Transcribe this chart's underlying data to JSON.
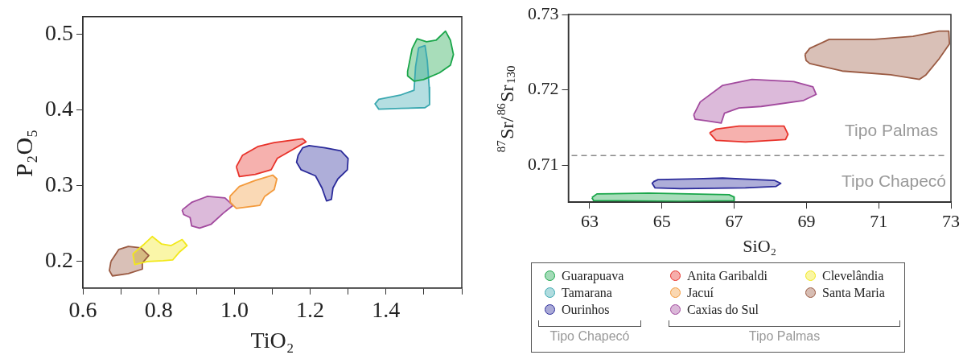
{
  "chart_data": [
    {
      "type": "scatter",
      "xlabel": "TiO₂",
      "ylabel": "P₂O₅",
      "xlim": [
        0.6,
        1.6
      ],
      "ylim": [
        0.165,
        0.523
      ],
      "xticks": [
        0.6,
        {
          "value": 0.7,
          "label": null
        },
        0.8,
        {
          "value": 0.9,
          "label": null
        },
        {
          "value": 1,
          "label": "1.0"
        },
        {
          "value": 1.1,
          "label": null
        },
        1.2,
        {
          "value": 1.3,
          "label": null
        },
        1.4,
        {
          "value": 1.5,
          "label": null
        },
        {
          "value": 1.6,
          "label": null
        }
      ],
      "yticks": [
        0.2,
        0.3,
        0.4,
        0.5
      ],
      "grid": false,
      "marker": "none",
      "legend": "right",
      "annotations": [
        "Tipo Chapecó",
        "Tipo Palmas"
      ],
      "series": [
        {
          "name": "Guarapuava",
          "type": "area",
          "color": "#1aa64a",
          "x": [
            1.457,
            1.469,
            1.482,
            1.507,
            1.532,
            1.557,
            1.57,
            1.578,
            1.57,
            1.541,
            1.499,
            1.474,
            1.457,
            1.457
          ],
          "values": [
            0.451,
            0.481,
            0.494,
            0.49,
            0.492,
            0.504,
            0.492,
            0.473,
            0.459,
            0.449,
            0.44,
            0.438,
            0.445,
            0.451
          ]
        },
        {
          "name": "Tamarana",
          "type": "area",
          "color": "#3aa8b0",
          "x": [
            1.486,
            1.503,
            1.509,
            1.514,
            1.515,
            1.503,
            1.44,
            1.381,
            1.371,
            1.381,
            1.44,
            1.474,
            1.478,
            1.486
          ],
          "values": [
            0.482,
            0.485,
            0.465,
            0.43,
            0.407,
            0.403,
            0.402,
            0.401,
            0.408,
            0.414,
            0.42,
            0.426,
            0.457,
            0.482
          ]
        },
        {
          "name": "Ourinhos",
          "type": "area",
          "color": "#2b2b9a",
          "x": [
            1.168,
            1.18,
            1.197,
            1.239,
            1.281,
            1.3,
            1.298,
            1.273,
            1.26,
            1.256,
            1.243,
            1.231,
            1.214,
            1.176,
            1.164,
            1.168
          ],
          "values": [
            0.34,
            0.35,
            0.353,
            0.35,
            0.346,
            0.336,
            0.321,
            0.309,
            0.297,
            0.282,
            0.28,
            0.297,
            0.313,
            0.321,
            0.331,
            0.34
          ]
        },
        {
          "name": "Anita Garibaldi",
          "type": "area",
          "color": "#e8322a",
          "x": [
            1.005,
            1.021,
            1.063,
            1.105,
            1.18,
            1.189,
            1.155,
            1.113,
            1.097,
            1.055,
            1.013,
            1.005
          ],
          "values": [
            0.325,
            0.34,
            0.352,
            0.357,
            0.362,
            0.358,
            0.348,
            0.336,
            0.321,
            0.315,
            0.312,
            0.325
          ]
        },
        {
          "name": "Jacuí",
          "type": "area",
          "color": "#f39a3c",
          "x": [
            0.988,
            1.013,
            1.055,
            1.101,
            1.112,
            1.105,
            1.08,
            1.067,
            1.005,
            0.989,
            0.988
          ],
          "values": [
            0.286,
            0.299,
            0.307,
            0.314,
            0.309,
            0.295,
            0.286,
            0.274,
            0.27,
            0.278,
            0.286
          ]
        },
        {
          "name": "Caxias do Sul",
          "type": "area",
          "color": "#a24a9e",
          "x": [
            0.862,
            0.887,
            0.929,
            0.975,
            0.996,
            0.971,
            0.938,
            0.908,
            0.887,
            0.883,
            0.866,
            0.862
          ],
          "values": [
            0.268,
            0.278,
            0.286,
            0.284,
            0.274,
            0.264,
            0.249,
            0.244,
            0.247,
            0.258,
            0.262,
            0.268
          ]
        },
        {
          "name": "Clevelândia",
          "type": "area",
          "color": "#f2e81a",
          "x": [
            0.732,
            0.762,
            0.783,
            0.808,
            0.833,
            0.862,
            0.875,
            0.854,
            0.837,
            0.812,
            0.77,
            0.737,
            0.732
          ],
          "values": [
            0.21,
            0.223,
            0.233,
            0.223,
            0.221,
            0.229,
            0.221,
            0.212,
            0.202,
            0.201,
            0.2,
            0.196,
            0.21
          ]
        },
        {
          "name": "Santa Maria",
          "type": "area",
          "color": "#9a5a42",
          "x": [
            0.674,
            0.695,
            0.72,
            0.753,
            0.774,
            0.757,
            0.757,
            0.72,
            0.678,
            0.67,
            0.674
          ],
          "values": [
            0.2,
            0.216,
            0.22,
            0.218,
            0.208,
            0.198,
            0.19,
            0.184,
            0.181,
            0.188,
            0.2
          ]
        }
      ]
    },
    {
      "type": "scatter",
      "xlabel": "SiO₂",
      "ylabel": "$^{87}$Sr/$^{86}$Sr$_{130}$",
      "xlim": [
        62.41,
        73
      ],
      "ylim": [
        0.7051,
        0.73
      ],
      "xticks": [
        63,
        65,
        67,
        69,
        71,
        73
      ],
      "yticks": [
        0.71,
        0.72,
        0.73
      ],
      "grid": false,
      "marker": "none",
      "ref_lines": [
        {
          "axis": "y",
          "value": 0.7113,
          "color": "#888888",
          "line_style": "dashed"
        }
      ],
      "annotations": [
        "Tipo Palmas",
        "Tipo Chapecó"
      ],
      "series": [
        {
          "type": "area",
          "color": "#9a5a42",
          "x": [
            68.96,
            69.09,
            69.63,
            70.88,
            71.95,
            72.67,
            72.94,
            72.96,
            72.67,
            72.31,
            72.13,
            71.33,
            69.99,
            69.09,
            68.99,
            68.96
          ],
          "values": [
            0.7247,
            0.7255,
            0.7267,
            0.7267,
            0.7271,
            0.7278,
            0.7278,
            0.7261,
            0.7241,
            0.722,
            0.7214,
            0.722,
            0.7225,
            0.7235,
            0.7239,
            0.7247
          ]
        },
        {
          "type": "area",
          "color": "#a24a9e",
          "x": [
            65.88,
            66.06,
            66.68,
            67.49,
            68.65,
            69.18,
            69.27,
            68.92,
            67.75,
            67.13,
            66.73,
            66.64,
            66.24,
            65.92,
            65.88
          ],
          "values": [
            0.7167,
            0.7184,
            0.7206,
            0.7214,
            0.7211,
            0.7204,
            0.7194,
            0.7186,
            0.7178,
            0.7176,
            0.7169,
            0.7156,
            0.7159,
            0.7161,
            0.7167
          ]
        },
        {
          "type": "area",
          "color": "#e8322a",
          "x": [
            66.32,
            66.5,
            67.13,
            68.38,
            68.49,
            68.42,
            67.31,
            66.5,
            66.32
          ],
          "values": [
            0.7143,
            0.7148,
            0.7152,
            0.7152,
            0.7141,
            0.7134,
            0.7131,
            0.7133,
            0.7143
          ]
        },
        {
          "type": "area",
          "color": "#2b2b9a",
          "x": [
            64.76,
            64.89,
            65.97,
            66.68,
            68.11,
            68.29,
            68.16,
            67.31,
            65.52,
            64.81,
            64.73,
            64.76
          ],
          "values": [
            0.7078,
            0.7081,
            0.7082,
            0.7083,
            0.708,
            0.7076,
            0.7072,
            0.707,
            0.7069,
            0.707,
            0.7076,
            0.7078
          ]
        },
        {
          "type": "area",
          "color": "#1aa64a",
          "x": [
            63.06,
            63.2,
            64.63,
            66.86,
            66.99,
            67.0,
            65.52,
            63.73,
            63.11,
            63.06
          ],
          "values": [
            0.7057,
            0.7062,
            0.7063,
            0.7061,
            0.7058,
            0.7053,
            0.7052,
            0.7053,
            0.7053,
            0.7057
          ]
        }
      ]
    }
  ]
}
